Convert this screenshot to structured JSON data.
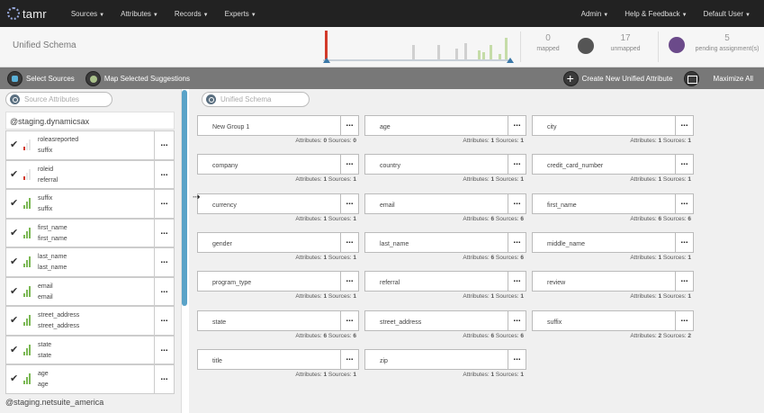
{
  "nav": {
    "logo": "tamr",
    "items": [
      "Sources",
      "Attributes",
      "Records",
      "Experts"
    ],
    "right": [
      "Admin",
      "Help & Feedback",
      "Default User"
    ]
  },
  "header": {
    "title": "Unified Schema",
    "mapped_count": "0",
    "mapped_label": "mapped",
    "unmapped_count": "17",
    "unmapped_label": "unmapped",
    "pending_count": "5",
    "pending_label": "pending assignment(s)"
  },
  "toolbar": {
    "select_sources": "Select Sources",
    "map_suggestions": "Map Selected Suggestions",
    "create_attr": "Create New Unified Attribute",
    "maximize": "Maximize All"
  },
  "left": {
    "search_placeholder": "Source Attributes",
    "source_name": "@staging.dynamicsax",
    "items": [
      {
        "name": "roleasreported",
        "sub": "suffix",
        "signal": 1
      },
      {
        "name": "roleid",
        "sub": "referral",
        "signal": 1
      },
      {
        "name": "suffix",
        "sub": "suffix",
        "signal": 3
      },
      {
        "name": "first_name",
        "sub": "first_name",
        "signal": 3
      },
      {
        "name": "last_name",
        "sub": "last_name",
        "signal": 3
      },
      {
        "name": "email",
        "sub": "email",
        "signal": 3
      },
      {
        "name": "street_address",
        "sub": "street_address",
        "signal": 3
      },
      {
        "name": "state",
        "sub": "state",
        "signal": 3
      },
      {
        "name": "age",
        "sub": "age",
        "signal": 3
      }
    ],
    "checkmark": "✔",
    "more": "...",
    "next_source": "@staging.netsuite_america"
  },
  "right": {
    "search_placeholder": "Unified Schema",
    "attr_label": "Attributes:",
    "src_label": "Sources:",
    "more": "...",
    "cards": [
      {
        "name": "New Group 1",
        "attributes": "0",
        "sources": "0"
      },
      {
        "name": "age",
        "attributes": "1",
        "sources": "1"
      },
      {
        "name": "city",
        "attributes": "1",
        "sources": "1"
      },
      {
        "name": "company",
        "attributes": "1",
        "sources": "1"
      },
      {
        "name": "country",
        "attributes": "1",
        "sources": "1"
      },
      {
        "name": "credit_card_number",
        "attributes": "1",
        "sources": "1"
      },
      {
        "name": "currency",
        "attributes": "1",
        "sources": "1"
      },
      {
        "name": "email",
        "attributes": "6",
        "sources": "6"
      },
      {
        "name": "first_name",
        "attributes": "6",
        "sources": "6"
      },
      {
        "name": "gender",
        "attributes": "1",
        "sources": "1"
      },
      {
        "name": "last_name",
        "attributes": "6",
        "sources": "6"
      },
      {
        "name": "middle_name",
        "attributes": "1",
        "sources": "1"
      },
      {
        "name": "program_type",
        "attributes": "1",
        "sources": "1"
      },
      {
        "name": "referral",
        "attributes": "1",
        "sources": "1"
      },
      {
        "name": "review",
        "attributes": "1",
        "sources": "1"
      },
      {
        "name": "state",
        "attributes": "6",
        "sources": "6"
      },
      {
        "name": "street_address",
        "attributes": "6",
        "sources": "6"
      },
      {
        "name": "suffix",
        "attributes": "2",
        "sources": "2"
      },
      {
        "name": "title",
        "attributes": "1",
        "sources": "1"
      },
      {
        "name": "zip",
        "attributes": "1",
        "sources": "1"
      }
    ]
  },
  "colors": {
    "accent": "#5aa3c8",
    "signal": "#7bb854",
    "alert": "#d23a2a"
  }
}
